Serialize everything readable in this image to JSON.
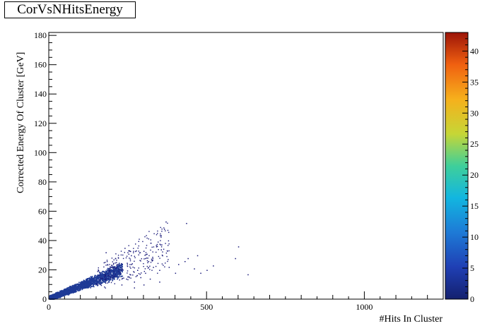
{
  "chart_data": {
    "type": "heatmap",
    "title": "CorVsNHitsEnergy",
    "xlabel": "#Hits In Cluster",
    "ylabel": "Corrected Energy Of Cluster [GeV]",
    "xlim": [
      0,
      1250
    ],
    "ylim": [
      0,
      182
    ],
    "x_ticks": [
      0,
      500,
      1000
    ],
    "y_ticks": [
      0,
      20,
      40,
      60,
      80,
      100,
      120,
      140,
      160,
      180
    ],
    "colorbar": {
      "min": 0,
      "max": 43,
      "ticks": [
        0,
        5,
        10,
        15,
        20,
        25,
        30,
        35,
        40
      ]
    },
    "point_color": "#1a1a7a",
    "band_color": "#1e3a96",
    "notes_points": [
      [
        370,
        53
      ],
      [
        365,
        48
      ],
      [
        435,
        52
      ],
      [
        340,
        36
      ],
      [
        355,
        34
      ],
      [
        600,
        36
      ],
      [
        590,
        28
      ],
      [
        630,
        17
      ],
      [
        240,
        35
      ],
      [
        260,
        30
      ],
      [
        300,
        33
      ],
      [
        315,
        26
      ],
      [
        330,
        22
      ],
      [
        260,
        24
      ],
      [
        280,
        20
      ],
      [
        305,
        18
      ],
      [
        350,
        20
      ],
      [
        380,
        22
      ],
      [
        410,
        24
      ],
      [
        430,
        26
      ],
      [
        460,
        21
      ],
      [
        500,
        20
      ],
      [
        520,
        23
      ],
      [
        480,
        18
      ],
      [
        400,
        18
      ],
      [
        440,
        28
      ],
      [
        470,
        30
      ],
      [
        210,
        28
      ],
      [
        200,
        22
      ],
      [
        180,
        32
      ],
      [
        225,
        18
      ],
      [
        245,
        14
      ],
      [
        270,
        12
      ],
      [
        290,
        15
      ],
      [
        320,
        14
      ],
      [
        350,
        12
      ],
      [
        300,
        10
      ],
      [
        270,
        8
      ],
      [
        230,
        10
      ]
    ]
  }
}
